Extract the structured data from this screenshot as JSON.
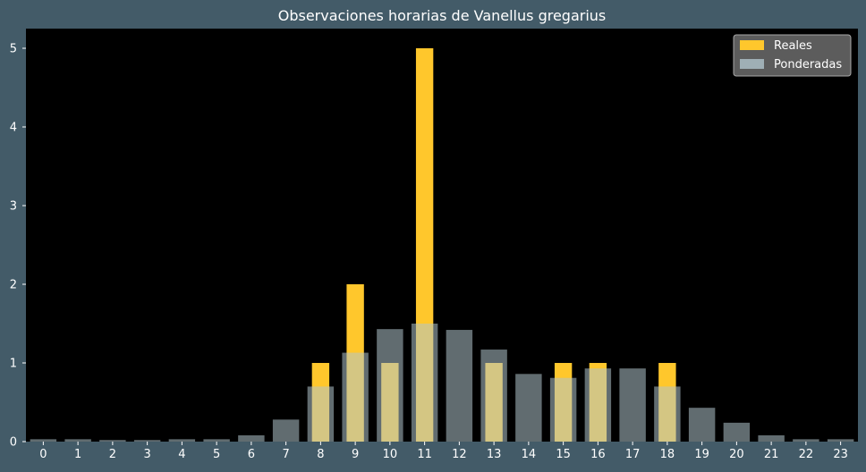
{
  "chart_data": {
    "type": "bar",
    "title": "Observaciones horarias de Vanellus gregarius",
    "xlabel": "",
    "ylabel": "",
    "categories": [
      "0",
      "1",
      "2",
      "3",
      "4",
      "5",
      "6",
      "7",
      "8",
      "9",
      "10",
      "11",
      "12",
      "13",
      "14",
      "15",
      "16",
      "17",
      "18",
      "19",
      "20",
      "21",
      "22",
      "23"
    ],
    "ylim": [
      0,
      5.25
    ],
    "yticks": [
      0,
      1,
      2,
      3,
      4,
      5
    ],
    "grid": false,
    "legend_position": "top-right",
    "series": [
      {
        "name": "Reales",
        "color": "#ffc72c",
        "values": [
          0,
          0,
          0,
          0,
          0,
          0,
          0,
          0,
          1,
          2,
          1,
          5,
          0,
          1,
          0,
          1,
          1,
          0,
          1,
          0,
          0,
          0,
          0,
          0
        ]
      },
      {
        "name": "Ponderadas",
        "color": "#b0c4cc",
        "values": [
          0.03,
          0.03,
          0.02,
          0.02,
          0.03,
          0.03,
          0.08,
          0.28,
          0.7,
          1.13,
          1.43,
          1.5,
          1.42,
          1.17,
          0.86,
          0.81,
          0.93,
          0.93,
          0.7,
          0.43,
          0.24,
          0.08,
          0.03,
          0.03
        ]
      }
    ],
    "background_color": "#000000",
    "figure_color": "#435b68"
  }
}
